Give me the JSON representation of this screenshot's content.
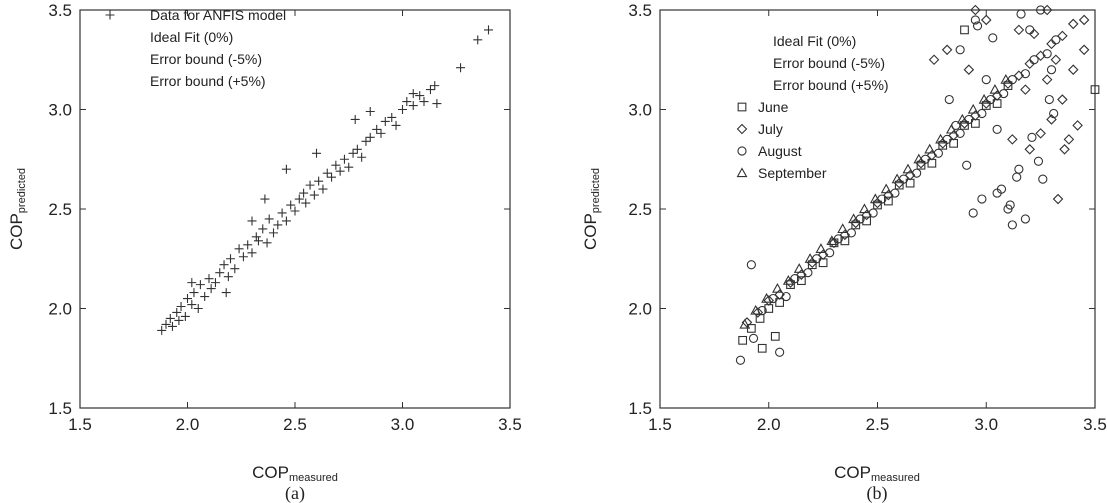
{
  "chart_data": [
    {
      "type": "scatter",
      "panel_label": "(a)",
      "xlabel_main": "COP",
      "xlabel_sub": "measured",
      "ylabel_main": "COP",
      "ylabel_sub": "predicted",
      "xlim": [
        1.5,
        3.5
      ],
      "ylim": [
        1.5,
        3.5
      ],
      "xticks": [
        "1.5",
        "2.0",
        "2.5",
        "3.0",
        "3.5"
      ],
      "yticks": [
        "1.5",
        "2.0",
        "2.5",
        "3.0",
        "3.5"
      ],
      "grid": false,
      "legend_position": "top-left",
      "legend": [
        {
          "label": "Data for ANFIS model",
          "marker": "plus"
        },
        {
          "label": "Ideal Fit (0%)",
          "marker": "none"
        },
        {
          "label": "Error bound (-5%)",
          "marker": "none"
        },
        {
          "label": "Error bound (+5%)",
          "marker": "none"
        }
      ],
      "series": [
        {
          "name": "Data for ANFIS model",
          "marker": "plus",
          "x": [
            1.88,
            1.9,
            1.92,
            1.93,
            1.95,
            1.96,
            1.97,
            1.99,
            2.0,
            2.02,
            2.03,
            2.05,
            2.06,
            2.08,
            2.1,
            2.11,
            2.13,
            2.15,
            2.17,
            2.19,
            2.2,
            2.22,
            2.24,
            2.26,
            2.28,
            2.3,
            2.32,
            2.33,
            2.35,
            2.37,
            2.38,
            2.4,
            2.42,
            2.44,
            2.46,
            2.48,
            2.5,
            2.52,
            2.54,
            2.55,
            2.57,
            2.59,
            2.61,
            2.63,
            2.65,
            2.67,
            2.69,
            2.71,
            2.73,
            2.75,
            2.77,
            2.79,
            2.81,
            2.83,
            2.85,
            2.88,
            2.9,
            2.92,
            2.95,
            2.97,
            3.0,
            3.02,
            3.05,
            3.08,
            3.1,
            3.13,
            3.15,
            3.16,
            3.27,
            3.35,
            3.4,
            2.36,
            2.46,
            2.18,
            2.6,
            2.78,
            2.02,
            2.3,
            3.05,
            2.85
          ],
          "y": [
            1.89,
            1.92,
            1.95,
            1.91,
            1.98,
            1.94,
            2.01,
            1.96,
            2.05,
            2.02,
            2.08,
            2.0,
            2.12,
            2.06,
            2.15,
            2.1,
            2.13,
            2.18,
            2.22,
            2.16,
            2.25,
            2.2,
            2.3,
            2.26,
            2.32,
            2.28,
            2.36,
            2.34,
            2.4,
            2.33,
            2.45,
            2.38,
            2.42,
            2.48,
            2.44,
            2.52,
            2.49,
            2.55,
            2.58,
            2.53,
            2.62,
            2.57,
            2.64,
            2.6,
            2.68,
            2.66,
            2.72,
            2.69,
            2.75,
            2.71,
            2.78,
            2.8,
            2.76,
            2.84,
            2.86,
            2.9,
            2.88,
            2.94,
            2.96,
            2.92,
            3.0,
            3.04,
            3.02,
            3.07,
            3.04,
            3.1,
            3.12,
            3.03,
            3.21,
            3.35,
            3.4,
            2.55,
            2.7,
            2.08,
            2.78,
            2.95,
            2.13,
            2.44,
            3.08,
            2.99
          ]
        }
      ]
    },
    {
      "type": "scatter",
      "panel_label": "(b)",
      "xlabel_main": "COP",
      "xlabel_sub": "measured",
      "ylabel_main": "COP",
      "ylabel_sub": "predicted",
      "xlim": [
        1.5,
        3.5
      ],
      "ylim": [
        1.5,
        3.5
      ],
      "xticks": [
        "1.5",
        "2.0",
        "2.5",
        "3.0",
        "3.5"
      ],
      "yticks": [
        "1.5",
        "2.0",
        "2.5",
        "3.0",
        "3.5"
      ],
      "grid": false,
      "legend_position": "top-left",
      "legend": [
        {
          "label": "Ideal Fit (0%)",
          "marker": "none"
        },
        {
          "label": "Error bound (-5%)",
          "marker": "none"
        },
        {
          "label": "Error bound (+5%)",
          "marker": "none"
        },
        {
          "label": "June",
          "marker": "square"
        },
        {
          "label": "July",
          "marker": "diamond"
        },
        {
          "label": "August",
          "marker": "circle"
        },
        {
          "label": "September",
          "marker": "triangle"
        }
      ],
      "series": [
        {
          "name": "June",
          "marker": "square",
          "x": [
            1.88,
            1.92,
            1.96,
            2.0,
            2.05,
            2.1,
            2.15,
            2.2,
            2.25,
            2.3,
            2.35,
            2.4,
            2.45,
            2.5,
            2.55,
            2.6,
            2.65,
            2.7,
            2.75,
            2.8,
            2.85,
            2.9,
            2.95,
            3.0,
            3.05,
            3.1,
            2.9,
            3.5,
            2.03,
            1.97
          ],
          "y": [
            1.84,
            1.9,
            1.95,
            2.0,
            2.03,
            2.12,
            2.14,
            2.22,
            2.23,
            2.33,
            2.34,
            2.42,
            2.44,
            2.52,
            2.54,
            2.62,
            2.63,
            2.72,
            2.73,
            2.82,
            2.83,
            2.92,
            2.93,
            3.02,
            3.03,
            3.12,
            3.4,
            3.1,
            1.86,
            1.8
          ]
        },
        {
          "name": "July",
          "marker": "diamond",
          "x": [
            1.9,
            1.95,
            2.0,
            2.05,
            2.1,
            2.15,
            2.2,
            2.25,
            2.3,
            2.35,
            2.4,
            2.45,
            2.5,
            2.55,
            2.6,
            2.65,
            2.7,
            2.75,
            2.8,
            2.85,
            2.9,
            2.95,
            3.0,
            3.05,
            3.1,
            3.15,
            3.2,
            3.25,
            3.3,
            3.35,
            3.4,
            3.45,
            3.45,
            3.4,
            3.35,
            3.3,
            3.25,
            3.2,
            3.18,
            3.22,
            3.28,
            3.32,
            3.38,
            3.42,
            2.82,
            2.76,
            2.95,
            3.15,
            3.33,
            3.12,
            2.92,
            3.0,
            3.28,
            3.36
          ],
          "y": [
            1.93,
            1.98,
            2.04,
            2.07,
            2.13,
            2.17,
            2.23,
            2.27,
            2.33,
            2.37,
            2.43,
            2.47,
            2.53,
            2.57,
            2.63,
            2.67,
            2.73,
            2.77,
            2.83,
            2.87,
            2.93,
            2.97,
            3.03,
            3.07,
            3.13,
            3.17,
            3.23,
            3.27,
            3.33,
            3.37,
            3.43,
            3.45,
            3.3,
            3.2,
            3.05,
            2.95,
            2.88,
            2.8,
            3.1,
            3.38,
            3.5,
            3.25,
            2.85,
            2.92,
            3.3,
            3.25,
            3.5,
            3.4,
            2.55,
            2.85,
            3.2,
            3.45,
            3.15,
            2.8
          ]
        },
        {
          "name": "August",
          "marker": "circle",
          "x": [
            1.87,
            1.93,
            1.97,
            2.02,
            2.08,
            2.12,
            2.18,
            2.22,
            2.28,
            2.32,
            2.38,
            2.42,
            2.48,
            2.52,
            2.58,
            2.62,
            2.68,
            2.72,
            2.78,
            2.82,
            2.88,
            2.92,
            2.98,
            3.02,
            3.08,
            3.12,
            3.18,
            3.22,
            3.28,
            3.32,
            2.83,
            2.88,
            2.95,
            3.0,
            3.05,
            3.1,
            3.15,
            3.2,
            3.25,
            3.3,
            2.98,
            3.07,
            3.12,
            3.18,
            3.26,
            3.31,
            2.91,
            3.03,
            3.16,
            3.24,
            2.86,
            2.94,
            3.05,
            3.21,
            1.92,
            2.05,
            3.11,
            2.96,
            3.29,
            3.14
          ],
          "y": [
            1.74,
            1.85,
            1.99,
            2.05,
            2.06,
            2.15,
            2.18,
            2.25,
            2.28,
            2.35,
            2.38,
            2.45,
            2.48,
            2.55,
            2.58,
            2.65,
            2.68,
            2.75,
            2.78,
            2.85,
            2.88,
            2.95,
            2.98,
            3.05,
            3.08,
            3.15,
            3.18,
            3.25,
            3.28,
            3.35,
            3.05,
            3.3,
            3.45,
            3.15,
            2.9,
            2.5,
            2.7,
            3.4,
            3.5,
            3.2,
            2.55,
            2.6,
            2.42,
            2.45,
            2.65,
            2.98,
            2.72,
            3.36,
            3.48,
            2.74,
            2.92,
            2.48,
            2.58,
            2.86,
            2.22,
            1.78,
            2.52,
            3.42,
            3.05,
            2.66
          ]
        },
        {
          "name": "September",
          "marker": "triangle",
          "x": [
            1.89,
            1.94,
            1.99,
            2.04,
            2.09,
            2.14,
            2.19,
            2.24,
            2.29,
            2.34,
            2.39,
            2.44,
            2.49,
            2.54,
            2.59,
            2.64,
            2.69,
            2.74,
            2.79,
            2.84,
            2.89,
            2.94,
            2.99,
            3.04,
            3.09
          ],
          "y": [
            1.92,
            1.99,
            2.05,
            2.1,
            2.14,
            2.2,
            2.25,
            2.3,
            2.34,
            2.4,
            2.45,
            2.5,
            2.55,
            2.6,
            2.65,
            2.7,
            2.75,
            2.8,
            2.85,
            2.9,
            2.95,
            3.0,
            3.05,
            3.1,
            3.15
          ]
        }
      ]
    }
  ]
}
